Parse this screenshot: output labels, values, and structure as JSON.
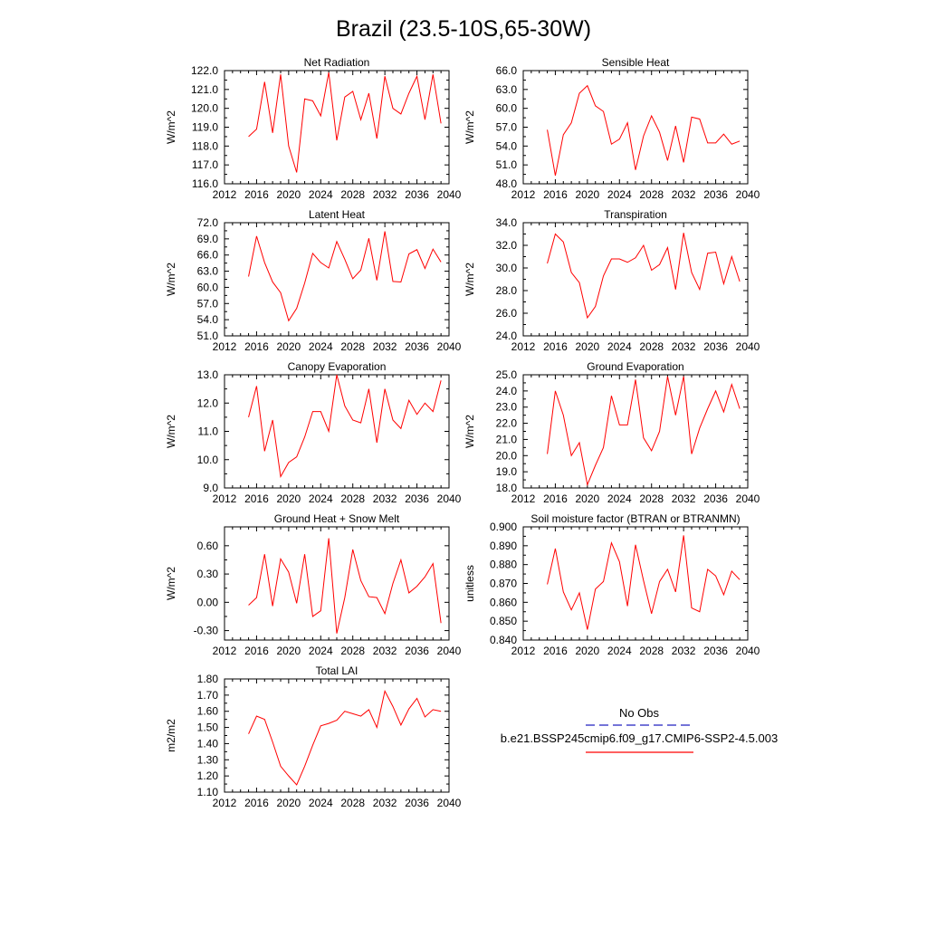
{
  "figure": {
    "title": "Brazil (23.5-10S,65-30W)",
    "series_color": "#ff0000",
    "obs_color": "#2020c0"
  },
  "legend": {
    "obs_label": "No Obs",
    "model_label": "b.e21.BSSP245cmip6.f09_g17.CMIP6-SSP2-4.5.003"
  },
  "chart_data": [
    {
      "type": "line",
      "title": "Net Radiation",
      "xlabel": "",
      "ylabel": "W/m^2",
      "xlim": [
        2012,
        2040
      ],
      "ylim": [
        116.0,
        122.0
      ],
      "xticks": [
        2012,
        2016,
        2020,
        2024,
        2028,
        2032,
        2036,
        2040
      ],
      "xtick_labels": [
        "2012",
        "2016",
        "2020",
        "2024",
        "2028",
        "2032",
        "2036",
        "2040"
      ],
      "yticks": [
        116.0,
        117.0,
        118.0,
        119.0,
        120.0,
        121.0,
        122.0
      ],
      "ytick_labels": [
        "116.0",
        "117.0",
        "118.0",
        "119.0",
        "120.0",
        "121.0",
        "122.0"
      ],
      "x": [
        2015,
        2016,
        2017,
        2018,
        2019,
        2020,
        2021,
        2022,
        2023,
        2024,
        2025,
        2026,
        2027,
        2028,
        2029,
        2030,
        2031,
        2032,
        2033,
        2034,
        2035,
        2036,
        2037,
        2038,
        2039
      ],
      "series": [
        {
          "name": "b.e21.BSSP245cmip6.f09_g17.CMIP6-SSP2-4.5.003",
          "values": [
            118.5,
            118.9,
            121.4,
            118.7,
            121.8,
            118.0,
            116.6,
            120.5,
            120.4,
            119.6,
            121.9,
            118.3,
            120.6,
            120.9,
            119.4,
            120.8,
            118.4,
            121.7,
            120.0,
            119.7,
            120.8,
            121.7,
            119.4,
            121.8,
            119.2
          ]
        }
      ]
    },
    {
      "type": "line",
      "title": "Sensible Heat",
      "xlabel": "",
      "ylabel": "W/m^2",
      "xlim": [
        2012,
        2040
      ],
      "ylim": [
        48.0,
        66.0
      ],
      "xticks": [
        2012,
        2016,
        2020,
        2024,
        2028,
        2032,
        2036,
        2040
      ],
      "xtick_labels": [
        "2012",
        "2016",
        "2020",
        "2024",
        "2028",
        "2032",
        "2036",
        "2040"
      ],
      "yticks": [
        48.0,
        51.0,
        54.0,
        57.0,
        60.0,
        63.0,
        66.0
      ],
      "ytick_labels": [
        "48.0",
        "51.0",
        "54.0",
        "57.0",
        "60.0",
        "63.0",
        "66.0"
      ],
      "x": [
        2015,
        2016,
        2017,
        2018,
        2019,
        2020,
        2021,
        2022,
        2023,
        2024,
        2025,
        2026,
        2027,
        2028,
        2029,
        2030,
        2031,
        2032,
        2033,
        2034,
        2035,
        2036,
        2037,
        2038,
        2039
      ],
      "series": [
        {
          "name": "b.e21.BSSP245cmip6.f09_g17.CMIP6-SSP2-4.5.003",
          "values": [
            56.6,
            49.3,
            55.8,
            57.7,
            62.4,
            63.6,
            60.4,
            59.5,
            54.3,
            55.1,
            57.7,
            50.2,
            55.6,
            58.8,
            56.2,
            51.7,
            57.2,
            51.4,
            58.6,
            58.3,
            54.5,
            54.5,
            55.9,
            54.3,
            54.8
          ]
        }
      ]
    },
    {
      "type": "line",
      "title": "Latent Heat",
      "xlabel": "",
      "ylabel": "W/m^2",
      "xlim": [
        2012,
        2040
      ],
      "ylim": [
        51.0,
        72.0
      ],
      "xticks": [
        2012,
        2016,
        2020,
        2024,
        2028,
        2032,
        2036,
        2040
      ],
      "xtick_labels": [
        "2012",
        "2016",
        "2020",
        "2024",
        "2028",
        "2032",
        "2036",
        "2040"
      ],
      "yticks": [
        51.0,
        54.0,
        57.0,
        60.0,
        63.0,
        66.0,
        69.0,
        72.0
      ],
      "ytick_labels": [
        "51.0",
        "54.0",
        "57.0",
        "60.0",
        "63.0",
        "66.0",
        "69.0",
        "72.0"
      ],
      "x": [
        2015,
        2016,
        2017,
        2018,
        2019,
        2020,
        2021,
        2022,
        2023,
        2024,
        2025,
        2026,
        2027,
        2028,
        2029,
        2030,
        2031,
        2032,
        2033,
        2034,
        2035,
        2036,
        2037,
        2038,
        2039
      ],
      "series": [
        {
          "name": "b.e21.BSSP245cmip6.f09_g17.CMIP6-SSP2-4.5.003",
          "values": [
            62.0,
            69.5,
            64.6,
            61.0,
            59.0,
            53.8,
            56.1,
            60.8,
            66.3,
            64.6,
            63.6,
            68.5,
            65.2,
            61.6,
            63.2,
            69.1,
            61.3,
            70.4,
            61.1,
            61.0,
            66.2,
            67.0,
            63.5,
            67.1,
            64.7
          ]
        }
      ]
    },
    {
      "type": "line",
      "title": "Transpiration",
      "xlabel": "",
      "ylabel": "W/m^2",
      "xlim": [
        2012,
        2040
      ],
      "ylim": [
        24.0,
        34.0
      ],
      "xticks": [
        2012,
        2016,
        2020,
        2024,
        2028,
        2032,
        2036,
        2040
      ],
      "xtick_labels": [
        "2012",
        "2016",
        "2020",
        "2024",
        "2028",
        "2032",
        "2036",
        "2040"
      ],
      "yticks": [
        24.0,
        26.0,
        28.0,
        30.0,
        32.0,
        34.0
      ],
      "ytick_labels": [
        "24.0",
        "26.0",
        "28.0",
        "30.0",
        "32.0",
        "34.0"
      ],
      "x": [
        2015,
        2016,
        2017,
        2018,
        2019,
        2020,
        2021,
        2022,
        2023,
        2024,
        2025,
        2026,
        2027,
        2028,
        2029,
        2030,
        2031,
        2032,
        2033,
        2034,
        2035,
        2036,
        2037,
        2038,
        2039
      ],
      "series": [
        {
          "name": "b.e21.BSSP245cmip6.f09_g17.CMIP6-SSP2-4.5.003",
          "values": [
            30.4,
            33.0,
            32.3,
            29.6,
            28.7,
            25.6,
            26.6,
            29.3,
            30.8,
            30.8,
            30.5,
            30.9,
            32.0,
            29.8,
            30.3,
            31.8,
            28.1,
            33.1,
            29.6,
            28.1,
            31.3,
            31.4,
            28.6,
            31.0,
            28.8
          ]
        }
      ]
    },
    {
      "type": "line",
      "title": "Canopy Evaporation",
      "xlabel": "",
      "ylabel": "W/m^2",
      "xlim": [
        2012,
        2040
      ],
      "ylim": [
        9.0,
        13.0
      ],
      "xticks": [
        2012,
        2016,
        2020,
        2024,
        2028,
        2032,
        2036,
        2040
      ],
      "xtick_labels": [
        "2012",
        "2016",
        "2020",
        "2024",
        "2028",
        "2032",
        "2036",
        "2040"
      ],
      "yticks": [
        9.0,
        10.0,
        11.0,
        12.0,
        13.0
      ],
      "ytick_labels": [
        "9.0",
        "10.0",
        "11.0",
        "12.0",
        "13.0"
      ],
      "x": [
        2015,
        2016,
        2017,
        2018,
        2019,
        2020,
        2021,
        2022,
        2023,
        2024,
        2025,
        2026,
        2027,
        2028,
        2029,
        2030,
        2031,
        2032,
        2033,
        2034,
        2035,
        2036,
        2037,
        2038,
        2039
      ],
      "series": [
        {
          "name": "b.e21.BSSP245cmip6.f09_g17.CMIP6-SSP2-4.5.003",
          "values": [
            11.5,
            12.6,
            10.3,
            11.4,
            9.4,
            9.9,
            10.1,
            10.8,
            11.7,
            11.7,
            11.0,
            13.0,
            11.9,
            11.4,
            11.3,
            12.5,
            10.6,
            12.5,
            11.4,
            11.1,
            12.1,
            11.6,
            12.0,
            11.7,
            12.8
          ]
        }
      ]
    },
    {
      "type": "line",
      "title": "Ground Evaporation",
      "xlabel": "",
      "ylabel": "W/m^2",
      "xlim": [
        2012,
        2040
      ],
      "ylim": [
        18.0,
        25.0
      ],
      "xticks": [
        2012,
        2016,
        2020,
        2024,
        2028,
        2032,
        2036,
        2040
      ],
      "xtick_labels": [
        "2012",
        "2016",
        "2020",
        "2024",
        "2028",
        "2032",
        "2036",
        "2040"
      ],
      "yticks": [
        18.0,
        19.0,
        20.0,
        21.0,
        22.0,
        23.0,
        24.0,
        25.0
      ],
      "ytick_labels": [
        "18.0",
        "19.0",
        "20.0",
        "21.0",
        "22.0",
        "23.0",
        "24.0",
        "25.0"
      ],
      "x": [
        2015,
        2016,
        2017,
        2018,
        2019,
        2020,
        2021,
        2022,
        2023,
        2024,
        2025,
        2026,
        2027,
        2028,
        2029,
        2030,
        2031,
        2032,
        2033,
        2034,
        2035,
        2036,
        2037,
        2038,
        2039
      ],
      "series": [
        {
          "name": "b.e21.BSSP245cmip6.f09_g17.CMIP6-SSP2-4.5.003",
          "values": [
            20.1,
            24.0,
            22.5,
            20.0,
            20.8,
            18.2,
            19.4,
            20.5,
            23.7,
            21.9,
            21.9,
            24.7,
            21.1,
            20.3,
            21.5,
            24.9,
            22.5,
            24.9,
            20.1,
            21.7,
            22.9,
            24.0,
            22.7,
            24.4,
            22.9
          ]
        }
      ]
    },
    {
      "type": "line",
      "title": "Ground Heat + Snow Melt",
      "xlabel": "",
      "ylabel": "W/m^2",
      "xlim": [
        2012,
        2040
      ],
      "ylim": [
        -0.4,
        0.8
      ],
      "xticks": [
        2012,
        2016,
        2020,
        2024,
        2028,
        2032,
        2036,
        2040
      ],
      "xtick_labels": [
        "2012",
        "2016",
        "2020",
        "2024",
        "2028",
        "2032",
        "2036",
        "2040"
      ],
      "yticks": [
        -0.3,
        0.0,
        0.3,
        0.6
      ],
      "ytick_labels": [
        "-0.30",
        "0.00",
        "0.30",
        "0.60"
      ],
      "x": [
        2015,
        2016,
        2017,
        2018,
        2019,
        2020,
        2021,
        2022,
        2023,
        2024,
        2025,
        2026,
        2027,
        2028,
        2029,
        2030,
        2031,
        2032,
        2033,
        2034,
        2035,
        2036,
        2037,
        2038,
        2039
      ],
      "series": [
        {
          "name": "b.e21.BSSP245cmip6.f09_g17.CMIP6-SSP2-4.5.003",
          "values": [
            -0.03,
            0.05,
            0.51,
            -0.04,
            0.46,
            0.32,
            -0.01,
            0.51,
            -0.15,
            -0.09,
            0.68,
            -0.33,
            0.05,
            0.56,
            0.23,
            0.06,
            0.05,
            -0.12,
            0.2,
            0.45,
            0.1,
            0.17,
            0.27,
            0.41,
            -0.22
          ]
        }
      ]
    },
    {
      "type": "line",
      "title": "Soil moisture factor (BTRAN or BTRANMN)",
      "xlabel": "",
      "ylabel": "unitless",
      "xlim": [
        2012,
        2040
      ],
      "ylim": [
        0.84,
        0.9
      ],
      "xticks": [
        2012,
        2016,
        2020,
        2024,
        2028,
        2032,
        2036,
        2040
      ],
      "xtick_labels": [
        "2012",
        "2016",
        "2020",
        "2024",
        "2028",
        "2032",
        "2036",
        "2040"
      ],
      "yticks": [
        0.84,
        0.85,
        0.86,
        0.87,
        0.88,
        0.89,
        0.9
      ],
      "ytick_labels": [
        "0.840",
        "0.850",
        "0.860",
        "0.870",
        "0.880",
        "0.890",
        "0.900"
      ],
      "x": [
        2015,
        2016,
        2017,
        2018,
        2019,
        2020,
        2021,
        2022,
        2023,
        2024,
        2025,
        2026,
        2027,
        2028,
        2029,
        2030,
        2031,
        2032,
        2033,
        2034,
        2035,
        2036,
        2037,
        2038,
        2039
      ],
      "series": [
        {
          "name": "b.e21.BSSP245cmip6.f09_g17.CMIP6-SSP2-4.5.003",
          "values": [
            0.8695,
            0.8885,
            0.8655,
            0.856,
            0.865,
            0.8455,
            0.867,
            0.871,
            0.8915,
            0.8815,
            0.858,
            0.8905,
            0.8715,
            0.854,
            0.871,
            0.8775,
            0.8655,
            0.8955,
            0.857,
            0.855,
            0.8775,
            0.874,
            0.864,
            0.8765,
            0.872
          ]
        }
      ]
    },
    {
      "type": "line",
      "title": "Total LAI",
      "xlabel": "",
      "ylabel": "m2/m2",
      "xlim": [
        2012,
        2040
      ],
      "ylim": [
        1.1,
        1.8
      ],
      "xticks": [
        2012,
        2016,
        2020,
        2024,
        2028,
        2032,
        2036,
        2040
      ],
      "xtick_labels": [
        "2012",
        "2016",
        "2020",
        "2024",
        "2028",
        "2032",
        "2036",
        "2040"
      ],
      "yticks": [
        1.1,
        1.2,
        1.3,
        1.4,
        1.5,
        1.6,
        1.7,
        1.8
      ],
      "ytick_labels": [
        "1.10",
        "1.20",
        "1.30",
        "1.40",
        "1.50",
        "1.60",
        "1.70",
        "1.80"
      ],
      "x": [
        2015,
        2016,
        2017,
        2018,
        2019,
        2020,
        2021,
        2022,
        2023,
        2024,
        2025,
        2026,
        2027,
        2028,
        2029,
        2030,
        2031,
        2032,
        2033,
        2034,
        2035,
        2036,
        2037,
        2038,
        2039
      ],
      "series": [
        {
          "name": "b.e21.BSSP245cmip6.f09_g17.CMIP6-SSP2-4.5.003",
          "values": [
            1.46,
            1.57,
            1.55,
            1.41,
            1.26,
            1.2,
            1.145,
            1.26,
            1.39,
            1.51,
            1.525,
            1.545,
            1.6,
            1.585,
            1.57,
            1.61,
            1.5,
            1.725,
            1.63,
            1.515,
            1.615,
            1.68,
            1.565,
            1.61,
            1.6
          ]
        }
      ]
    }
  ]
}
